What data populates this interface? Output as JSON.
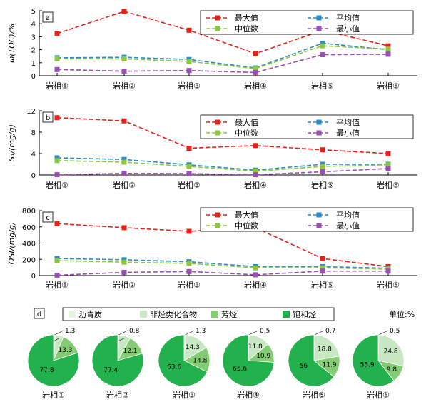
{
  "colors": {
    "max": "#e8201a",
    "mean": "#2b8ccf",
    "median": "#8dc63f",
    "min": "#9b4fb0",
    "asphaltene": "#e6f2e0",
    "nonhydrocarbon": "#c7e8c2",
    "aromatic": "#84cc74",
    "saturate": "#22b14c",
    "line": "#000000"
  },
  "facies": [
    "岩相①",
    "岩相②",
    "岩相③",
    "岩相④",
    "岩相⑤",
    "岩相⑥"
  ],
  "line_legend": [
    "最大值",
    "平均值",
    "中位数",
    "最小值"
  ],
  "chart_data": [
    {
      "type": "line",
      "panel": "a",
      "ylabel": "ω(TOC)/%",
      "ylim": [
        0,
        5
      ],
      "yticks": [
        0,
        1,
        2,
        3,
        4,
        5
      ],
      "categories": [
        "岩相①",
        "岩相②",
        "岩相③",
        "岩相④",
        "岩相⑤",
        "岩相⑥"
      ],
      "series": [
        {
          "name": "最大值",
          "color_key": "max",
          "values": [
            3.25,
            4.95,
            3.5,
            1.7,
            3.5,
            2.3
          ]
        },
        {
          "name": "平均值",
          "color_key": "mean",
          "values": [
            1.38,
            1.42,
            1.25,
            0.6,
            2.5,
            2.0
          ]
        },
        {
          "name": "中位数",
          "color_key": "median",
          "values": [
            1.3,
            1.3,
            1.1,
            0.55,
            2.3,
            2.05
          ]
        },
        {
          "name": "最小值",
          "color_key": "min",
          "values": [
            0.48,
            0.35,
            0.4,
            0.25,
            1.62,
            1.65
          ]
        }
      ]
    },
    {
      "type": "line",
      "panel": "b",
      "ylabel": "S₁/(mg/g)",
      "ylim": [
        0,
        12
      ],
      "yticks": [
        0,
        4,
        8,
        12
      ],
      "categories": [
        "岩相①",
        "岩相②",
        "岩相③",
        "岩相④",
        "岩相⑤",
        "岩相⑥"
      ],
      "series": [
        {
          "name": "最大值",
          "color_key": "max",
          "values": [
            10.7,
            10.1,
            5.0,
            5.5,
            4.7,
            4.0
          ]
        },
        {
          "name": "平均值",
          "color_key": "mean",
          "values": [
            3.2,
            2.9,
            1.9,
            0.9,
            2.0,
            2.0
          ]
        },
        {
          "name": "中位数",
          "color_key": "median",
          "values": [
            2.7,
            2.4,
            1.6,
            0.7,
            1.6,
            1.9
          ]
        },
        {
          "name": "最小值",
          "color_key": "min",
          "values": [
            0.05,
            0.3,
            0.25,
            0.05,
            0.6,
            1.2
          ]
        }
      ]
    },
    {
      "type": "line",
      "panel": "c",
      "ylabel": "OSI/(mg/g)",
      "ylim": [
        0,
        800
      ],
      "yticks": [
        0,
        200,
        400,
        600,
        800
      ],
      "categories": [
        "岩相①",
        "岩相②",
        "岩相③",
        "岩相④",
        "岩相⑤",
        "岩相⑥"
      ],
      "series": [
        {
          "name": "最大值",
          "color_key": "max",
          "values": [
            640,
            590,
            545,
            590,
            210,
            110
          ]
        },
        {
          "name": "平均值",
          "color_key": "mean",
          "values": [
            210,
            195,
            170,
            110,
            110,
            90
          ]
        },
        {
          "name": "中位数",
          "color_key": "median",
          "values": [
            185,
            165,
            150,
            95,
            95,
            80
          ]
        },
        {
          "name": "最小值",
          "color_key": "min",
          "values": [
            5,
            40,
            50,
            10,
            55,
            55
          ]
        }
      ]
    },
    {
      "type": "pie",
      "panel": "d",
      "unit": "单位:%",
      "legend": [
        "沥青质",
        "非烃类化合物",
        "芳烃",
        "饱和烃"
      ],
      "component_colors": [
        "asphaltene",
        "nonhydrocarbon",
        "aromatic",
        "saturate"
      ],
      "pies": [
        {
          "label": "岩相①",
          "values": [
            1.3,
            4.9,
            13.3,
            77.8
          ]
        },
        {
          "label": "岩相②",
          "values": [
            0.8,
            7.1,
            12.1,
            77.4
          ]
        },
        {
          "label": "岩相③",
          "values": [
            1.3,
            14.3,
            14.8,
            63.6
          ]
        },
        {
          "label": "岩相④",
          "values": [
            0.5,
            11.8,
            10.9,
            65.6
          ]
        },
        {
          "label": "岩相⑤",
          "values": [
            0.7,
            18.8,
            11.9,
            56.0
          ]
        },
        {
          "label": "岩相⑥",
          "values": [
            0.5,
            24.8,
            9.8,
            53.9
          ]
        }
      ]
    }
  ]
}
